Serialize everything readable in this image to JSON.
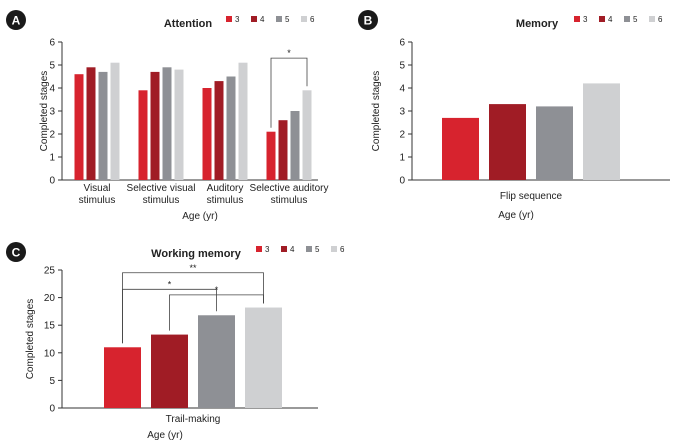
{
  "colors": {
    "3": "#d7232e",
    "4": "#a01c25",
    "5": "#8e9095",
    "6": "#cfd0d2"
  },
  "chart_data": [
    {
      "panel": "A",
      "type": "bar",
      "title": "Attention",
      "ylabel": "Completed stages",
      "xlabel": "Age (yr)",
      "ylim": [
        0,
        6
      ],
      "yticks": [
        "0",
        "1",
        "2",
        "3",
        "4",
        "5",
        "6"
      ],
      "legend": [
        "3",
        "4",
        "5",
        "6"
      ],
      "categories": [
        [
          "Visual",
          "stimulus"
        ],
        [
          "Selective visual",
          "stimulus"
        ],
        [
          "Auditory",
          "stimulus"
        ],
        [
          "Selective auditory",
          "stimulus"
        ]
      ],
      "series": [
        {
          "name": "3",
          "values": [
            4.6,
            3.9,
            4.0,
            2.1
          ]
        },
        {
          "name": "4",
          "values": [
            4.9,
            4.7,
            4.3,
            2.6
          ]
        },
        {
          "name": "5",
          "values": [
            4.7,
            4.9,
            4.5,
            3.0
          ]
        },
        {
          "name": "6",
          "values": [
            5.1,
            4.8,
            5.1,
            3.9
          ]
        }
      ],
      "significance": [
        {
          "category": 3,
          "from": "3",
          "to": "6",
          "label": "*"
        }
      ]
    },
    {
      "panel": "B",
      "type": "bar",
      "title": "Memory",
      "ylabel": "Completed stages",
      "xlabel": "Age (yr)",
      "ylim": [
        0,
        6
      ],
      "yticks": [
        "0",
        "1",
        "2",
        "3",
        "4",
        "5",
        "6"
      ],
      "legend": [
        "3",
        "4",
        "5",
        "6"
      ],
      "categories": [
        [
          "Flip sequence"
        ]
      ],
      "series": [
        {
          "name": "3",
          "values": [
            2.7
          ]
        },
        {
          "name": "4",
          "values": [
            3.3
          ]
        },
        {
          "name": "5",
          "values": [
            3.2
          ]
        },
        {
          "name": "6",
          "values": [
            4.2
          ]
        }
      ],
      "significance": []
    },
    {
      "panel": "C",
      "type": "bar",
      "title": "Working memory",
      "ylabel": "Completed stages",
      "xlabel": "Age (yr)",
      "ylim": [
        0,
        25
      ],
      "yticks": [
        "0",
        "5",
        "10",
        "15",
        "20",
        "25"
      ],
      "legend": [
        "3",
        "4",
        "5",
        "6"
      ],
      "categories": [
        [
          "Trail-making"
        ]
      ],
      "series": [
        {
          "name": "3",
          "values": [
            11.0
          ]
        },
        {
          "name": "4",
          "values": [
            13.3
          ]
        },
        {
          "name": "5",
          "values": [
            16.8
          ]
        },
        {
          "name": "6",
          "values": [
            18.2
          ]
        }
      ],
      "significance": [
        {
          "category": 0,
          "from": "3",
          "to": "6",
          "label": "**"
        },
        {
          "category": 0,
          "from": "3",
          "to": "5",
          "label": "*"
        },
        {
          "category": 0,
          "from": "4",
          "to": "6",
          "label": "*"
        }
      ]
    }
  ]
}
